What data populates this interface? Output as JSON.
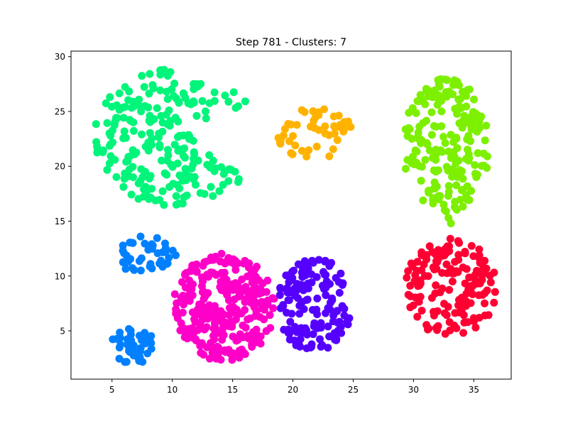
{
  "chart_data": {
    "type": "scatter",
    "title": "Step 781 - Clusters: 7",
    "xlabel": "",
    "ylabel": "",
    "xlim": [
      1.6,
      38.1
    ],
    "ylim": [
      0.6,
      30.5
    ],
    "xticks": [
      5,
      10,
      15,
      20,
      25,
      30,
      35
    ],
    "yticks": [
      5,
      10,
      15,
      20,
      25,
      30
    ],
    "grid": false,
    "legend": "none",
    "marker": "circle",
    "series": [
      {
        "color": "#00f57a",
        "center": [
          10.3,
          22.6
        ],
        "radius": [
          6.8,
          6.3
        ],
        "count": 230,
        "seed": 11,
        "wedge": true
      },
      {
        "color": "#ffb300",
        "center": [
          21.8,
          23.0
        ],
        "radius": [
          3.2,
          2.4
        ],
        "count": 50,
        "seed": 23
      },
      {
        "color": "#7cf000",
        "center": [
          32.7,
          21.9
        ],
        "radius": [
          3.6,
          6.1
        ],
        "count": 190,
        "seed": 37
      },
      {
        "color": "#7cf000",
        "x": [
          32.2,
          32.5,
          32.7,
          32.9,
          33.1
        ],
        "y": [
          17.3,
          16.5,
          15.9,
          15.3,
          14.8
        ],
        "count": 5
      },
      {
        "color": "#ff0033",
        "center": [
          33.1,
          8.9
        ],
        "radius": [
          3.8,
          4.5
        ],
        "count": 160,
        "seed": 41
      },
      {
        "color": "#ff00c8",
        "center": [
          14.3,
          7.2
        ],
        "radius": [
          4.2,
          5.0
        ],
        "count": 300,
        "seed": 53
      },
      {
        "color": "#5500ff",
        "center": [
          21.8,
          7.3
        ],
        "radius": [
          3.1,
          4.4
        ],
        "count": 140,
        "seed": 61
      },
      {
        "color": "#0080ff",
        "center": [
          7.6,
          11.9
        ],
        "radius": [
          2.7,
          1.8
        ],
        "count": 42,
        "seed": 73
      },
      {
        "color": "#0080ff",
        "center": [
          6.7,
          3.6
        ],
        "radius": [
          1.9,
          1.6
        ],
        "count": 45,
        "seed": 79
      }
    ]
  }
}
